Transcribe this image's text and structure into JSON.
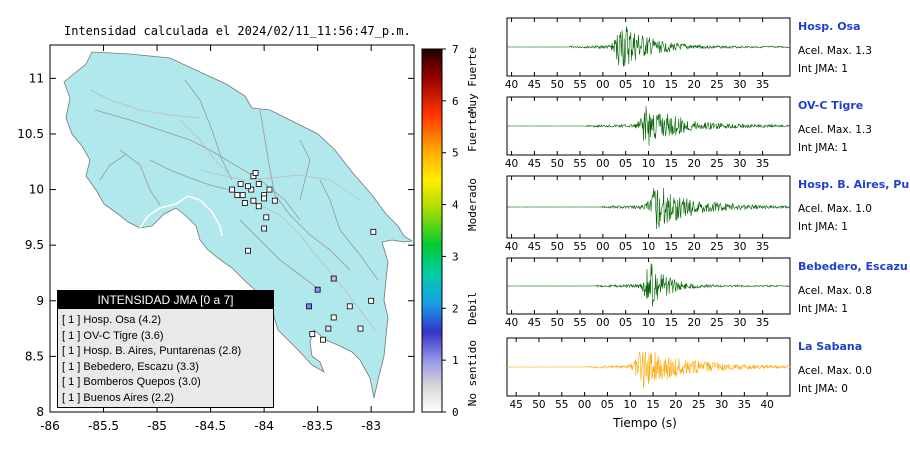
{
  "map_title": "Intensidad calculada el 2024/02/11_11:56:47_p.m.",
  "chart_data": [
    {
      "type": "scatter",
      "title": "Intensidad calculada el 2024/02/11_11:56:47_p.m.",
      "x_ticks": [
        "-86",
        "-85.5",
        "-85",
        "-84.5",
        "-84",
        "-83.5",
        "-83"
      ],
      "y_ticks": [
        "11",
        "10.5",
        "10",
        "9.5",
        "9",
        "8.5",
        "8"
      ],
      "xlim": [
        -86,
        -82.6
      ],
      "ylim": [
        8,
        11.3
      ],
      "colorbar": {
        "ticks": [
          "0",
          "1",
          "2",
          "3",
          "4",
          "5",
          "6",
          "7"
        ],
        "range": [
          0,
          7
        ],
        "labels": [
          "No sentido",
          "Debil",
          "Moderado",
          "Fuerte",
          "Muy Fuerte"
        ]
      },
      "stations_white": [
        [
          -84.1,
          10.12
        ],
        [
          -84.05,
          10.05
        ],
        [
          -84.12,
          10.0
        ],
        [
          -84.2,
          9.95
        ],
        [
          -84.1,
          9.9
        ],
        [
          -84.0,
          9.95
        ],
        [
          -83.95,
          10.0
        ],
        [
          -84.15,
          10.03
        ],
        [
          -84.05,
          9.85
        ],
        [
          -83.98,
          9.75
        ],
        [
          -84.0,
          9.65
        ],
        [
          -84.25,
          9.95
        ],
        [
          -84.18,
          9.88
        ],
        [
          -83.9,
          9.9
        ],
        [
          -84.22,
          10.05
        ],
        [
          -84.0,
          9.92
        ],
        [
          -84.15,
          9.45
        ],
        [
          -82.98,
          9.62
        ],
        [
          -83.2,
          8.95
        ],
        [
          -83.35,
          8.85
        ],
        [
          -83.0,
          9.0
        ],
        [
          -83.55,
          8.7
        ],
        [
          -83.45,
          8.65
        ],
        [
          -83.1,
          8.75
        ],
        [
          -84.08,
          10.15
        ],
        [
          -84.3,
          10.0
        ]
      ],
      "stations_colored": [
        [
          -83.58,
          8.95,
          "#8080ff"
        ],
        [
          -83.5,
          9.1,
          "#9090ff"
        ],
        [
          -83.35,
          9.2,
          "#c0c0e0"
        ],
        [
          -83.4,
          8.75,
          "#e0e0ff"
        ]
      ]
    },
    {
      "type": "line",
      "series_name": "Hosp. Osa",
      "accel_text": "Acel. Max. 1.3",
      "int_text": "Int JMA: 1",
      "x_ticks": [
        "40",
        "45",
        "50",
        "55",
        "00",
        "05",
        "10",
        "15",
        "20",
        "25",
        "30",
        "35"
      ],
      "color": "#006400"
    },
    {
      "type": "line",
      "series_name": "OV-C Tigre",
      "accel_text": "Acel. Max. 1.3",
      "int_text": "Int JMA: 1",
      "x_ticks": [
        "40",
        "45",
        "50",
        "55",
        "00",
        "05",
        "10",
        "15",
        "20",
        "25",
        "30",
        "35"
      ],
      "color": "#006400"
    },
    {
      "type": "line",
      "series_name": "Hosp. B. Aires, Puntare",
      "accel_text": "Acel. Max. 1.0",
      "int_text": "Int JMA: 1",
      "x_ticks": [
        "40",
        "45",
        "50",
        "55",
        "00",
        "05",
        "10",
        "15",
        "20",
        "25",
        "30",
        "35"
      ],
      "color": "#006400"
    },
    {
      "type": "line",
      "series_name": "Bebedero, Escazu",
      "accel_text": "Acel. Max. 0.8",
      "int_text": "Int JMA: 1",
      "x_ticks": [
        "40",
        "45",
        "50",
        "55",
        "00",
        "05",
        "10",
        "15",
        "20",
        "25",
        "30",
        "35"
      ],
      "color": "#006400"
    },
    {
      "type": "line",
      "series_name": "La Sabana",
      "accel_text": "Acel. Max. 0.0",
      "int_text": "Int JMA: 0",
      "x_ticks": [
        "45",
        "50",
        "55",
        "00",
        "05",
        "10",
        "15",
        "20",
        "25",
        "30",
        "35",
        "40"
      ],
      "xlabel": "Tiempo (s)",
      "color": "#ffa500"
    }
  ],
  "legend": {
    "title": "INTENSIDAD JMA [0 a 7]",
    "items": [
      "[ 1 ]  Hosp. Osa (4.2)",
      "[ 1 ]  OV-C Tigre (3.6)",
      "[ 1 ]  Hosp. B. Aires, Puntarenas (2.8)",
      "[ 1 ]  Bebedero, Escazu (3.3)",
      "[ 1 ]  Bomberos Quepos (3.0)",
      "[ 1 ]  Buenos Aires (2.2)"
    ]
  }
}
